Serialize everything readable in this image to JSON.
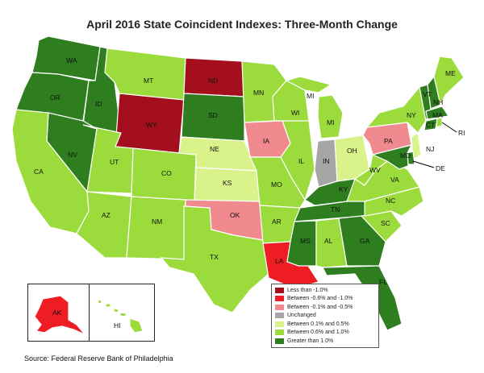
{
  "title": "April 2016 State Coincident Indexes: Three-Month Change",
  "source": "Source: Federal Reserve Bank of Philadelphia",
  "colors": {
    "less_than_neg1": "#a30f1c",
    "neg06_to_neg1": "#ee1d23",
    "neg01_to_neg05": "#f08a8f",
    "unchanged": "#a6a6a6",
    "pos01_to_05": "#d9f28a",
    "pos06_to_1": "#9bdc3c",
    "greater_than_1": "#2e7d1f"
  },
  "legend": [
    {
      "label": "Less than -1.0%",
      "key": "less_than_neg1"
    },
    {
      "label": "Between -0.6% and -1.0%",
      "key": "neg06_to_neg1"
    },
    {
      "label": "Between -0.1% and -0.5%",
      "key": "neg01_to_neg05"
    },
    {
      "label": "Unchanged",
      "key": "unchanged"
    },
    {
      "label": "Between 0.1% and 0.5%",
      "key": "pos01_to_05"
    },
    {
      "label": "Between 0.6% and 1.0%",
      "key": "pos06_to_1"
    },
    {
      "label": "Greater than 1.0%",
      "key": "greater_than_1"
    }
  ],
  "states": {
    "WA": "greater_than_1",
    "OR": "greater_than_1",
    "ID": "greater_than_1",
    "NV": "greater_than_1",
    "CA": "pos06_to_1",
    "MT": "pos06_to_1",
    "WY": "less_than_neg1",
    "UT": "pos06_to_1",
    "CO": "pos06_to_1",
    "AZ": "pos06_to_1",
    "NM": "pos06_to_1",
    "ND": "less_than_neg1",
    "SD": "greater_than_1",
    "NE": "pos01_to_05",
    "KS": "pos01_to_05",
    "OK": "neg01_to_neg05",
    "TX": "pos06_to_1",
    "MN": "pos06_to_1",
    "IA": "neg01_to_neg05",
    "MO": "pos06_to_1",
    "AR": "pos06_to_1",
    "LA": "neg06_to_neg1",
    "WI": "pos06_to_1",
    "IL": "pos06_to_1",
    "MI": "pos06_to_1",
    "IN": "unchanged",
    "OH": "pos01_to_05",
    "KY": "greater_than_1",
    "TN": "greater_than_1",
    "MS": "greater_than_1",
    "AL": "pos06_to_1",
    "GA": "greater_than_1",
    "FL": "greater_than_1",
    "SC": "pos06_to_1",
    "NC": "pos06_to_1",
    "VA": "pos06_to_1",
    "WV": "pos06_to_1",
    "PA": "neg01_to_neg05",
    "NY": "pos06_to_1",
    "VT": "greater_than_1",
    "NH": "greater_than_1",
    "ME": "pos06_to_1",
    "MA": "greater_than_1",
    "CT": "greater_than_1",
    "RI": "pos06_to_1",
    "NJ": "pos01_to_05",
    "DE": "greater_than_1",
    "MD": "greater_than_1",
    "AK": "neg06_to_neg1",
    "HI": "pos06_to_1"
  },
  "labels": {
    "WA": "WA",
    "OR": "OR",
    "ID": "ID",
    "NV": "NV",
    "CA": "CA",
    "MT": "MT",
    "WY": "WY",
    "UT": "UT",
    "CO": "CO",
    "AZ": "AZ",
    "NM": "NM",
    "ND": "ND",
    "SD": "SD",
    "NE": "NE",
    "KS": "KS",
    "OK": "OK",
    "TX": "TX",
    "MN": "MN",
    "IA": "IA",
    "MO": "MO",
    "AR": "AR",
    "LA": "LA",
    "WI": "WI",
    "IL": "IL",
    "MI": "MI",
    "MI2": "MI",
    "IN": "IN",
    "OH": "OH",
    "KY": "KY",
    "TN": "TN",
    "MS": "MS",
    "AL": "AL",
    "GA": "GA",
    "FL": "FL",
    "SC": "SC",
    "NC": "NC",
    "VA": "VA",
    "WV": "WV",
    "PA": "PA",
    "NY": "NY",
    "VT": "VT",
    "NH": "NH",
    "ME": "ME",
    "MA": "MA",
    "CT": "CT",
    "RI": "RI",
    "NJ": "NJ",
    "DE": "DE",
    "MD": "MD",
    "AK": "AK",
    "HI": "HI"
  }
}
